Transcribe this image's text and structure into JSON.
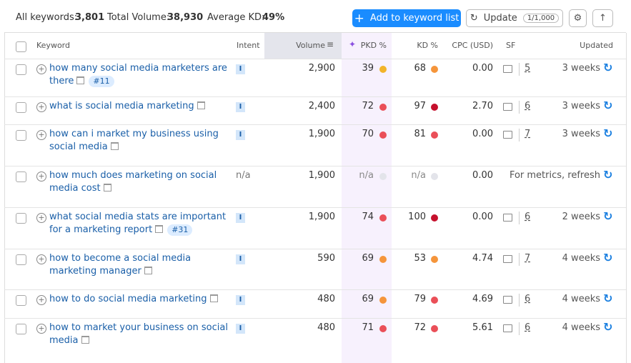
{
  "summary": {
    "all_keywords_label": "All keywords:",
    "all_keywords": "3,801",
    "total_volume_label": "Total Volume:",
    "total_volume": "38,930",
    "avg_kd_label": "Average KD:",
    "avg_kd": "49%"
  },
  "buttons": {
    "add": "Add to keyword list",
    "update": "Update",
    "update_count": "1/1,000"
  },
  "columns": [
    "Keyword",
    "Intent",
    "Volume",
    "PKD %",
    "KD %",
    "CPC (USD)",
    "SF",
    "Updated"
  ],
  "rows": [
    {
      "keyword": "how many social media marketers are there",
      "tag": "#11",
      "intent": "I",
      "volume": "2,900",
      "pkd": "39",
      "pkd_color": "#f2b429",
      "kd": "68",
      "kd_color": "#f5953b",
      "cpc": "0.00",
      "sf": "5",
      "updated": "3 weeks"
    },
    {
      "keyword": "what is social media marketing",
      "intent": "I",
      "volume": "2,400",
      "pkd": "72",
      "pkd_color": "#ea4f58",
      "kd": "97",
      "kd_color": "#c5102d",
      "cpc": "2.70",
      "sf": "6",
      "updated": "3 weeks"
    },
    {
      "keyword": "how can i market my business using social media",
      "intent": "I",
      "volume": "1,900",
      "pkd": "70",
      "pkd_color": "#ea4f58",
      "kd": "81",
      "kd_color": "#ea4f58",
      "cpc": "0.00",
      "sf": "7",
      "updated": "3 weeks"
    },
    {
      "keyword": "how much does marketing on social media cost",
      "intent": "n/a",
      "volume": "1,900",
      "pkd": "n/a",
      "pkd_color": "#e3e4ea",
      "kd": "n/a",
      "kd_color": "#e3e4ea",
      "cpc": "0.00",
      "updated": "For metrics, refresh"
    },
    {
      "keyword": "what social media stats are important for a marketing report",
      "tag": "#31",
      "intent": "I",
      "volume": "1,900",
      "pkd": "74",
      "pkd_color": "#ea4f58",
      "kd": "100",
      "kd_color": "#c5102d",
      "cpc": "0.00",
      "sf": "6",
      "updated": "2 weeks"
    },
    {
      "keyword": "how to become a social media marketing manager",
      "intent": "I",
      "volume": "590",
      "pkd": "69",
      "pkd_color": "#f5953b",
      "kd": "53",
      "kd_color": "#f5953b",
      "cpc": "4.74",
      "sf": "7",
      "updated": "4 weeks"
    },
    {
      "keyword": "how to do social media marketing",
      "intent": "I",
      "volume": "480",
      "pkd": "69",
      "pkd_color": "#f5953b",
      "kd": "79",
      "kd_color": "#ea4f58",
      "cpc": "4.69",
      "sf": "6",
      "updated": "4 weeks"
    },
    {
      "keyword": "how to market your business on social media",
      "intent": "I",
      "volume": "480",
      "pkd": "71",
      "pkd_color": "#ea4f58",
      "kd": "72",
      "kd_color": "#ea4f58",
      "cpc": "5.61",
      "sf": "6",
      "updated": "4 weeks"
    }
  ]
}
